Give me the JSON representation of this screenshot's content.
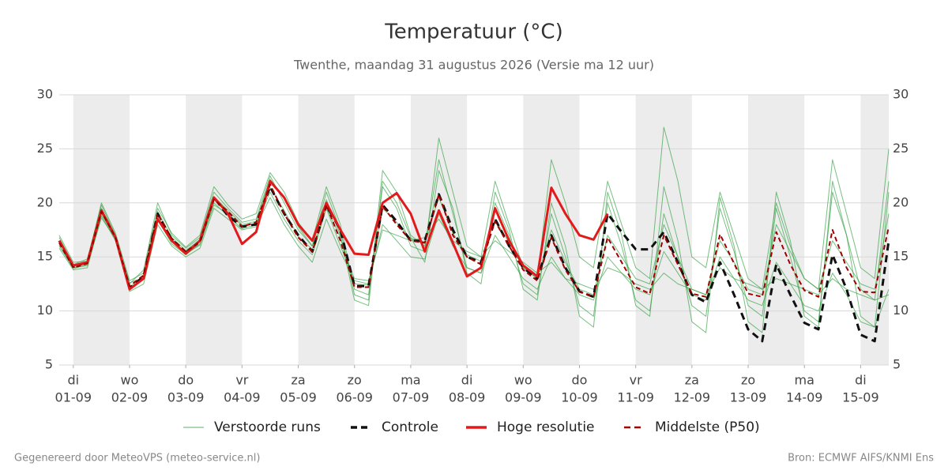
{
  "chart_data": {
    "type": "line",
    "title": "Temperatuur (°C)",
    "subtitle": "Twenthe, maandag 31 augustus 2026 (Versie ma 12 uur)",
    "footer_left": "Gegenereerd door MeteoVPS (meteo-service.nl)",
    "footer_right": "Bron: ECMWF AIFS/KNMI Ens",
    "x": [
      "2026-08-31T18:00",
      "2026-09-01T00:00",
      "2026-09-01T06:00",
      "2026-09-01T12:00",
      "2026-09-01T18:00",
      "2026-09-02T00:00",
      "2026-09-02T06:00",
      "2026-09-02T12:00",
      "2026-09-02T18:00",
      "2026-09-03T00:00",
      "2026-09-03T06:00",
      "2026-09-03T12:00",
      "2026-09-03T18:00",
      "2026-09-04T00:00",
      "2026-09-04T06:00",
      "2026-09-04T12:00",
      "2026-09-04T18:00",
      "2026-09-05T00:00",
      "2026-09-05T06:00",
      "2026-09-05T12:00",
      "2026-09-05T18:00",
      "2026-09-06T00:00",
      "2026-09-06T06:00",
      "2026-09-06T12:00",
      "2026-09-06T18:00",
      "2026-09-07T00:00",
      "2026-09-07T06:00",
      "2026-09-07T12:00",
      "2026-09-07T18:00",
      "2026-09-08T00:00",
      "2026-09-08T06:00",
      "2026-09-08T12:00",
      "2026-09-08T18:00",
      "2026-09-09T00:00",
      "2026-09-09T06:00",
      "2026-09-09T12:00",
      "2026-09-09T18:00",
      "2026-09-10T00:00",
      "2026-09-10T06:00",
      "2026-09-10T12:00",
      "2026-09-10T18:00",
      "2026-09-11T00:00",
      "2026-09-11T06:00",
      "2026-09-11T12:00",
      "2026-09-11T18:00",
      "2026-09-12T00:00",
      "2026-09-12T06:00",
      "2026-09-12T12:00",
      "2026-09-12T18:00",
      "2026-09-13T00:00",
      "2026-09-13T06:00",
      "2026-09-13T12:00",
      "2026-09-13T18:00",
      "2026-09-14T00:00",
      "2026-09-14T06:00",
      "2026-09-14T12:00",
      "2026-09-14T18:00",
      "2026-09-15T00:00",
      "2026-09-15T06:00",
      "2026-09-15T12:00"
    ],
    "xlim": [
      "2026-08-31T18:00",
      "2026-09-15T12:00"
    ],
    "xticks": [
      {
        "value": "2026-09-01T00:00",
        "label": [
          "di",
          "01-09"
        ]
      },
      {
        "value": "2026-09-02T00:00",
        "label": [
          "wo",
          "02-09"
        ]
      },
      {
        "value": "2026-09-03T00:00",
        "label": [
          "do",
          "03-09"
        ]
      },
      {
        "value": "2026-09-04T00:00",
        "label": [
          "vr",
          "04-09"
        ]
      },
      {
        "value": "2026-09-05T00:00",
        "label": [
          "za",
          "05-09"
        ]
      },
      {
        "value": "2026-09-06T00:00",
        "label": [
          "zo",
          "06-09"
        ]
      },
      {
        "value": "2026-09-07T00:00",
        "label": [
          "ma",
          "07-09"
        ]
      },
      {
        "value": "2026-09-08T00:00",
        "label": [
          "di",
          "08-09"
        ]
      },
      {
        "value": "2026-09-09T00:00",
        "label": [
          "wo",
          "09-09"
        ]
      },
      {
        "value": "2026-09-10T00:00",
        "label": [
          "do",
          "10-09"
        ]
      },
      {
        "value": "2026-09-11T00:00",
        "label": [
          "vr",
          "11-09"
        ]
      },
      {
        "value": "2026-09-12T00:00",
        "label": [
          "za",
          "12-09"
        ]
      },
      {
        "value": "2026-09-13T00:00",
        "label": [
          "zo",
          "13-09"
        ]
      },
      {
        "value": "2026-09-14T00:00",
        "label": [
          "ma",
          "14-09"
        ]
      },
      {
        "value": "2026-09-15T00:00",
        "label": [
          "di",
          "15-09"
        ]
      }
    ],
    "ylim": [
      5,
      30
    ],
    "yticks": [
      5,
      10,
      15,
      20,
      25,
      30
    ],
    "y2lim": [
      5,
      30
    ],
    "y2ticks": [
      5,
      10,
      15,
      20,
      25,
      30
    ],
    "grid": true,
    "legend": "bottom",
    "series": [
      {
        "name": "Verstoorde runs",
        "color": "#2e9e3e",
        "width": 1,
        "dash": false,
        "runs": [
          [
            16.8,
            14.3,
            14.8,
            19.8,
            17,
            12.5,
            13.8,
            20,
            17,
            15.8,
            16.8,
            21,
            19.5,
            18.2,
            18.5,
            22.5,
            20,
            17.5,
            16,
            21,
            17.5,
            11.5,
            11,
            23,
            21,
            17,
            16,
            24,
            19,
            14,
            13.5,
            20,
            17,
            12.5,
            11.5,
            19,
            15,
            10.5,
            9.5,
            20,
            16,
            11,
            10,
            19,
            15,
            10.5,
            9.5,
            19.5,
            15.5,
            10.5,
            9.5,
            19.5,
            15,
            10,
            9,
            21,
            17,
            12,
            11,
            22
          ],
          [
            15.8,
            13.8,
            14,
            18.8,
            16.5,
            11.8,
            12.5,
            18,
            16,
            15,
            15.8,
            19.5,
            18.5,
            17.5,
            17.8,
            20.5,
            18,
            16,
            14.5,
            18.5,
            15.5,
            12.8,
            12.5,
            18,
            16.5,
            15,
            14.8,
            19,
            16,
            14,
            13.5,
            17,
            15,
            13,
            12,
            15,
            13,
            11.5,
            11,
            15,
            13.5,
            12,
            11.5,
            15.5,
            13.5,
            11.5,
            11,
            15,
            13,
            11,
            10.5,
            14.5,
            12.5,
            10.5,
            10,
            13.5,
            11.5,
            9,
            8.5,
            12
          ],
          [
            17,
            14.5,
            14.6,
            20,
            17.2,
            12.8,
            13.5,
            19.5,
            17.2,
            15.9,
            17,
            21.5,
            19.8,
            18.5,
            19,
            22.8,
            21,
            18.2,
            16.5,
            21.5,
            18,
            12,
            11.5,
            21.5,
            19.5,
            16,
            15.5,
            26,
            21,
            16,
            15,
            22,
            18,
            14,
            13,
            24,
            20,
            15,
            14,
            22,
            18,
            14,
            13,
            27,
            22,
            15,
            14,
            21,
            17,
            13,
            12,
            20,
            16,
            13,
            12,
            24,
            19,
            14,
            13,
            25
          ],
          [
            16,
            14,
            14.2,
            19,
            16.6,
            12,
            13,
            18.5,
            16.2,
            15.2,
            16.2,
            20,
            18.8,
            17.6,
            18,
            21,
            18.5,
            16.5,
            15.2,
            19.5,
            16,
            13,
            12.8,
            17.5,
            17,
            16.5,
            16.8,
            18.5,
            16.5,
            15.5,
            15,
            16.5,
            15.5,
            14.5,
            13.5,
            14.5,
            13,
            12.5,
            12,
            14,
            13.5,
            12.5,
            12,
            13.5,
            12.5,
            12,
            11.5,
            14,
            13,
            12.5,
            12,
            13,
            12.5,
            12,
            11.5,
            13,
            12,
            11.5,
            11,
            11.5
          ],
          [
            16.5,
            14.2,
            14.5,
            19.5,
            16.9,
            12.2,
            13.2,
            19.2,
            16.8,
            15.6,
            16.6,
            20.6,
            19.3,
            18,
            18.3,
            22.2,
            20.5,
            17.8,
            16,
            20.3,
            17,
            11,
            10.5,
            22,
            20,
            16.8,
            14.5,
            23,
            19.5,
            13.5,
            12.5,
            21,
            17.5,
            12,
            11,
            20,
            16,
            9.5,
            8.5,
            21,
            17,
            10.5,
            9.5,
            21.5,
            16.5,
            9,
            8,
            20.5,
            16,
            9,
            8,
            21,
            16.5,
            9.5,
            8.5,
            22,
            17,
            9.5,
            8.5,
            21
          ],
          [
            16.1,
            13.9,
            14.3,
            18.6,
            16.7,
            12.6,
            13.1,
            18.8,
            16.4,
            15.3,
            16.1,
            19.8,
            19,
            17.9,
            18.1,
            21.4,
            19.3,
            16.9,
            15.7,
            19.6,
            16.8,
            12.5,
            12.4,
            19.5,
            18.2,
            16.7,
            16.4,
            20.5,
            17.2,
            15.2,
            14.6,
            18.5,
            16.3,
            14,
            13,
            17.5,
            14.5,
            12,
            11.5,
            17,
            15,
            13,
            12.5,
            18,
            15,
            12,
            11.5,
            16.5,
            14.5,
            12,
            11.5,
            18,
            15.5,
            13,
            12,
            16.5,
            14.5,
            12.5,
            12,
            19
          ]
        ]
      },
      {
        "name": "Controle",
        "color": "#111111",
        "width": 3,
        "dash": true,
        "values": [
          16.5,
          14.1,
          14.5,
          19.3,
          16.8,
          12.1,
          13.2,
          19.0,
          16.6,
          15.4,
          16.4,
          20.5,
          18.8,
          17.8,
          18,
          21.5,
          19,
          17,
          15.5,
          19.8,
          17.5,
          12.3,
          12.3,
          19.8,
          18.3,
          16.5,
          16.5,
          20.8,
          17.5,
          15,
          14.5,
          18.5,
          16,
          14,
          13,
          17,
          14,
          11.8,
          11.3,
          19,
          17.3,
          15.7,
          15.7,
          17.3,
          14.5,
          11.5,
          10.8,
          14.5,
          11.5,
          8.3,
          7.2,
          14.3,
          11.5,
          8.9,
          8.3,
          15.2,
          12,
          7.8,
          7.2,
          16.5
        ]
      },
      {
        "name": "Hoge resolutie",
        "color": "#e31a1c",
        "width": 3,
        "dash": false,
        "values": [
          16.5,
          14.2,
          14.5,
          19.3,
          16.8,
          12.0,
          13.0,
          18.5,
          16.5,
          15.3,
          16.5,
          20.5,
          19,
          16.2,
          17.3,
          22.0,
          20.5,
          18.0,
          16.5,
          20.0,
          17.5,
          15.3,
          15.2,
          20.0,
          20.9,
          19.0,
          15.5,
          19.3,
          16.3,
          13.2,
          14.0,
          19.5,
          16.5,
          14.2,
          13.2,
          21.4,
          19.0,
          17.0,
          16.6,
          19.0,
          null,
          null,
          null,
          null,
          null,
          null,
          null,
          null,
          null,
          null,
          null,
          null,
          null,
          null,
          null,
          null,
          null,
          null,
          null,
          null
        ]
      },
      {
        "name": "Middelste (P50)",
        "color": "#a00000",
        "width": 2,
        "dash": true,
        "values": [
          16.3,
          14,
          14.4,
          19.2,
          16.8,
          12.3,
          13.3,
          19,
          16.7,
          15.5,
          16.4,
          20.3,
          19.2,
          17.8,
          18.2,
          21.7,
          19,
          16.8,
          15.5,
          19.8,
          16.5,
          12.2,
          12.2,
          19.7,
          18,
          16.5,
          16.3,
          20.8,
          17,
          15,
          14.3,
          18.3,
          16,
          13.8,
          12.8,
          16.8,
          13.8,
          11.8,
          11.3,
          16.8,
          14.5,
          12.2,
          11.6,
          17,
          14.3,
          11.6,
          11.3,
          17.1,
          14.4,
          11.6,
          11.3,
          17.3,
          14.3,
          11.9,
          11.3,
          17.5,
          14,
          11.8,
          11.7,
          17.8
        ]
      }
    ]
  }
}
